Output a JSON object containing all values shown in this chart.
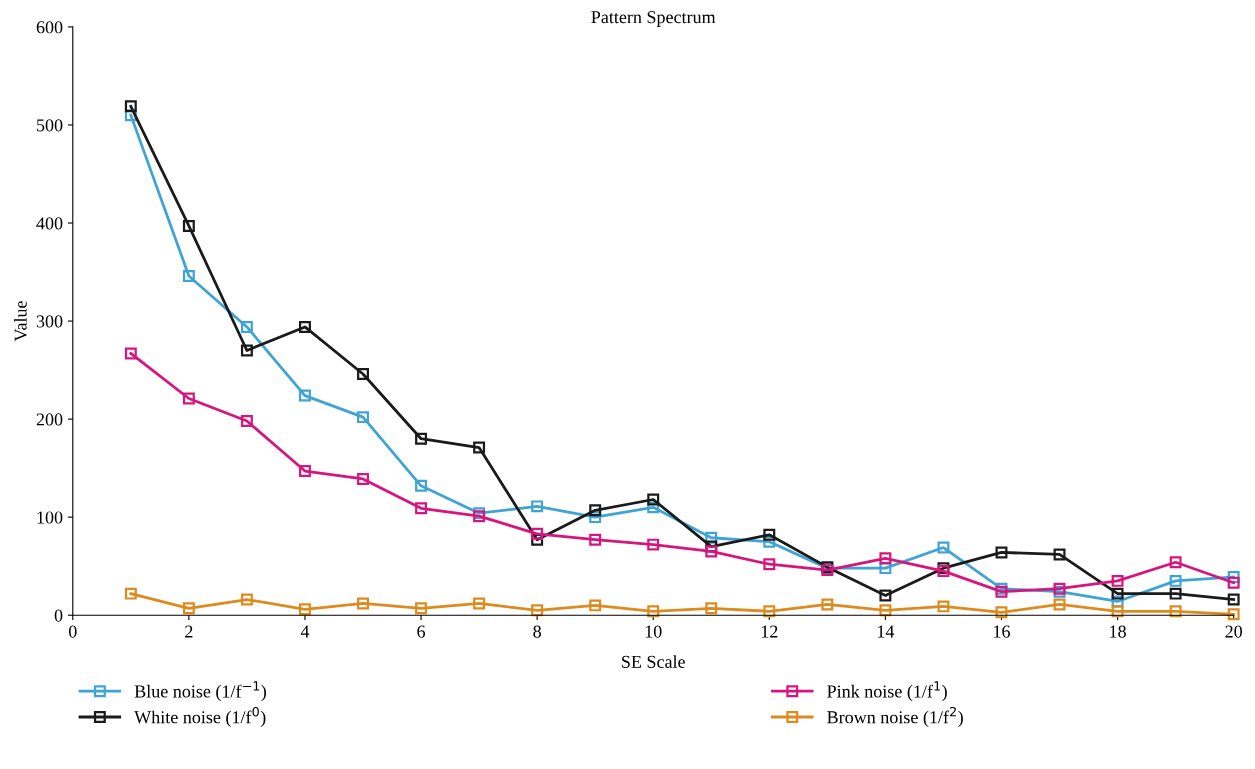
{
  "chart_data": {
    "type": "line",
    "title": "Pattern Spectrum",
    "xlabel": "SE Scale",
    "ylabel": "Value",
    "x": [
      1,
      2,
      3,
      4,
      5,
      6,
      7,
      8,
      9,
      10,
      11,
      12,
      13,
      14,
      15,
      16,
      17,
      18,
      19,
      20
    ],
    "xlim": [
      0,
      20
    ],
    "xticks": [
      0,
      2,
      4,
      6,
      8,
      10,
      12,
      14,
      16,
      18,
      20
    ],
    "ylim": [
      0,
      600
    ],
    "yticks": [
      0,
      100,
      200,
      300,
      400,
      500,
      600
    ],
    "grid": false,
    "legend": "bottom",
    "marker": "square",
    "line_style": "solid",
    "series": [
      {
        "name": "Blue noise (1/f$^{−1}$)",
        "color": "#3fa4d4",
        "values": [
          510,
          346,
          294,
          224,
          202,
          132,
          104,
          111,
          100,
          110,
          79,
          75,
          48,
          48,
          69,
          27,
          24,
          14,
          35,
          39
        ]
      },
      {
        "name": "White noise (1/f$^{0}$)",
        "color": "#1a1a1a",
        "values": [
          519,
          397,
          270,
          294,
          246,
          180,
          171,
          77,
          107,
          118,
          70,
          82,
          49,
          20,
          48,
          64,
          62,
          22,
          22,
          16
        ]
      },
      {
        "name": "Pink noise (1/f$^{1}$)",
        "color": "#d6167e",
        "values": [
          267,
          221,
          198,
          147,
          139,
          109,
          101,
          83,
          77,
          72,
          65,
          52,
          46,
          58,
          45,
          24,
          27,
          35,
          54,
          33
        ]
      },
      {
        "name": "Brown noise (1/f$^{2}$)",
        "color": "#dd8a1e",
        "values": [
          22,
          7,
          16,
          6,
          12,
          7,
          12,
          5,
          10,
          4,
          7,
          4,
          11,
          5,
          9,
          3,
          11,
          4,
          4,
          1
        ]
      }
    ]
  }
}
